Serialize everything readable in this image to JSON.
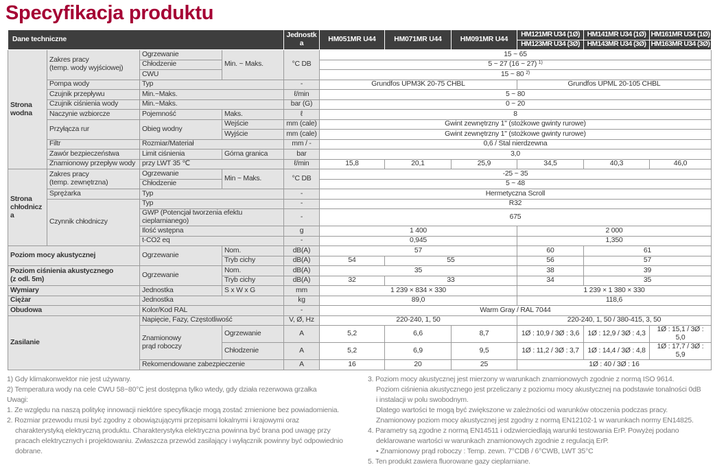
{
  "title": "Specyfikacja produktu",
  "header": {
    "tech": "Dane techniczne",
    "unit": "Jednostka",
    "models": [
      "HM051MR U44",
      "HM071MR U44",
      "HM091MR U44"
    ],
    "models_1ph": [
      "HM121MR U34 (1Ø)",
      "HM141MR U34 (1Ø)",
      "HM161MR U34 (1Ø)"
    ],
    "models_3ph": [
      "HM123MR U34 (3Ø)",
      "HM143MR U34 (3Ø)",
      "HM163MR U34 (3Ø)"
    ]
  },
  "rows": [
    [
      "Strona\nwodna",
      "Zakres pracy\n(temp. wody wyjściowej)",
      "Ogrzewanie",
      "Min. ~ Maks.",
      "°C DB",
      "15 ~ 65"
    ],
    [
      "Chłodzenie",
      "5 ~ 27 (16 ~ 27)",
      "1)"
    ],
    [
      "CWU",
      "15 ~ 80",
      "2)"
    ],
    [
      "Pompa wody",
      "Typ",
      "-",
      "Grundfos UPM3K 20-75 CHBL",
      "Grundfos UPML 20-105 CHBL"
    ],
    [
      "Czujnik przepływu",
      "Min.~Maks.",
      "ℓ/min",
      "5 ~ 80"
    ],
    [
      "Czujnik ciśnienia wody",
      "Min.~Maks.",
      "bar (G)",
      "0 ~ 20"
    ],
    [
      "Naczynie wzbiorcze",
      "Pojemność",
      "Maks.",
      "ℓ",
      "8"
    ],
    [
      "Przyłącza rur",
      "Obieg wodny",
      "Wejście",
      "mm (cale)",
      "Gwint zewnętrzny 1\" (stożkowe gwinty rurowe)"
    ],
    [
      "Wyjście",
      "mm (cale)",
      "Gwint zewnętrzny 1\" (stożkowe gwinty rurowe)"
    ],
    [
      "Filtr",
      "Rozmiar/Materiał",
      "mm / -",
      "0,6 / Stal nierdzewna"
    ],
    [
      "Zawór bezpieczeństwa",
      "Limit ciśnienia",
      "Górna granica",
      "bar",
      "3,0"
    ],
    [
      "Znamionowy przepływ wody",
      "przy LWT 35 ℃",
      "ℓ/min",
      "15,8",
      "20,1",
      "25,9",
      "34,5",
      "40,3",
      "46,0"
    ],
    [
      "Strona\nchłodnicza",
      "Zakres pracy\n(temp. zewnętrzna)",
      "Ogrzewanie",
      "Min ~ Maks.",
      "°C DB",
      "-25 ~ 35"
    ],
    [
      "Chłodzenie",
      "5 ~ 48"
    ],
    [
      "Sprężarka",
      "Typ",
      "-",
      "Hermetyczna Scroll"
    ],
    [
      "Czynnik chłodniczy",
      "Typ",
      "-",
      "R32"
    ],
    [
      "GWP (Potencjał tworzenia efektu cieplarnianego)",
      "-",
      "675"
    ],
    [
      "Ilość wstępna",
      "g",
      "1 400",
      "2 000"
    ],
    [
      "t-CO2 eq",
      "-",
      "0,945",
      "1,350"
    ],
    [
      "Poziom mocy akustycznej",
      "Ogrzewanie",
      "Nom.",
      "dB(A)",
      "57",
      "60",
      "61"
    ],
    [
      "Tryb cichy",
      "dB(A)",
      "54",
      "55",
      "56",
      "57"
    ],
    [
      "Poziom ciśnienia akustycznego\n(z odl. 5m)",
      "Ogrzewanie",
      "Nom.",
      "dB(A)",
      "35",
      "38",
      "39"
    ],
    [
      "Tryb cichy",
      "dB(A)",
      "32",
      "33",
      "34",
      "35"
    ],
    [
      "Wymiary",
      "Jednostka",
      "S x W x G",
      "mm",
      "1 239 × 834 × 330",
      "1 239 × 1 380 × 330"
    ],
    [
      "Ciężar",
      "Jednostka",
      "kg",
      "89,0",
      "118,6"
    ],
    [
      "Obudowa",
      "Kolor/Kod RAL",
      "-",
      "Warm Gray / RAL 7044"
    ],
    [
      "Zasilanie",
      "Napięcie, Fazy, Częstotliwość",
      "V, Ø, Hz",
      "220-240, 1, 50",
      "220-240, 1, 50 / 380-415, 3, 50"
    ],
    [
      "Znamionowy\nprąd roboczy",
      "Ogrzewanie",
      "A",
      "5,2",
      "6,6",
      "8,7",
      "1Ø : 10,9 / 3Ø : 3,6",
      "1Ø : 12,9 / 3Ø : 4,3",
      "1Ø : 15,1 / 3Ø : 5,0"
    ],
    [
      "Chłodzenie",
      "A",
      "5,2",
      "6,9",
      "9,5",
      "1Ø : 11,2 / 3Ø : 3,7",
      "1Ø : 14,4 / 3Ø : 4,8",
      "1Ø : 17,7 / 3Ø : 5,9"
    ],
    [
      "Rekomendowane zabezpieczenie",
      "A",
      "16",
      "20",
      "25",
      "1Ø : 40 / 3Ø : 16"
    ]
  ],
  "notes_left": [
    "1) Gdy klimakonwektor nie jest używany.",
    "2) Temperatura wody na cele CWU 58~80°C jest dostępna tylko wtedy, gdy działa rezerwowa grzałka",
    "Uwagi:",
    "1. Ze względu na naszą politykę innowacji niektóre specyfikacje mogą zostać zmienione bez powiadomienia.",
    "2. Rozmiar przewodu musi być zgodny z obowiązującymi przepisami lokalnymi i krajowymi oraz",
    "charakterystyką elektryczną produktu. Charakterystyka elektryczna powinna być brana pod uwagę przy",
    "pracach elektrycznych i projektowaniu. Zwłaszcza przewód zasilający i wyłącznik powinny być odpowiednio",
    "dobrane."
  ],
  "notes_right": [
    "3. Poziom mocy akustycznej jest mierzony w warunkach znamionowych zgodnie z normą ISO 9614.",
    "Poziom ciśnienia akustycznego jest przeliczany z poziomu mocy akustycznej na podstawie tonalności 0dB",
    "i instalacji w polu swobodnym.",
    "Dlatego wartości te mogą być zwiększone w zależności od warunków otoczenia podczas pracy.",
    "Znamionowy poziom mocy akustycznej jest zgodny z normą EN12102-1 w warunkach normy EN14825.",
    "4. Parametry są zgodne z normą EN14511 i odzwierciedlają warunki testowania ErP. Powyżej podano",
    "deklarowane wartości w warunkach znamionowych zgodnie z regulacją ErP.",
    "• Znamionowy prąd roboczy : Temp. zewn. 7°CDB / 6°CWB, LWT 35°C",
    "5. Ten produkt zawiera fluorowane gazy cieplarniane."
  ],
  "colors": {
    "title": "#a50034",
    "header_bg": "#3e3e3e",
    "label_bg": "#e4e4e4"
  }
}
